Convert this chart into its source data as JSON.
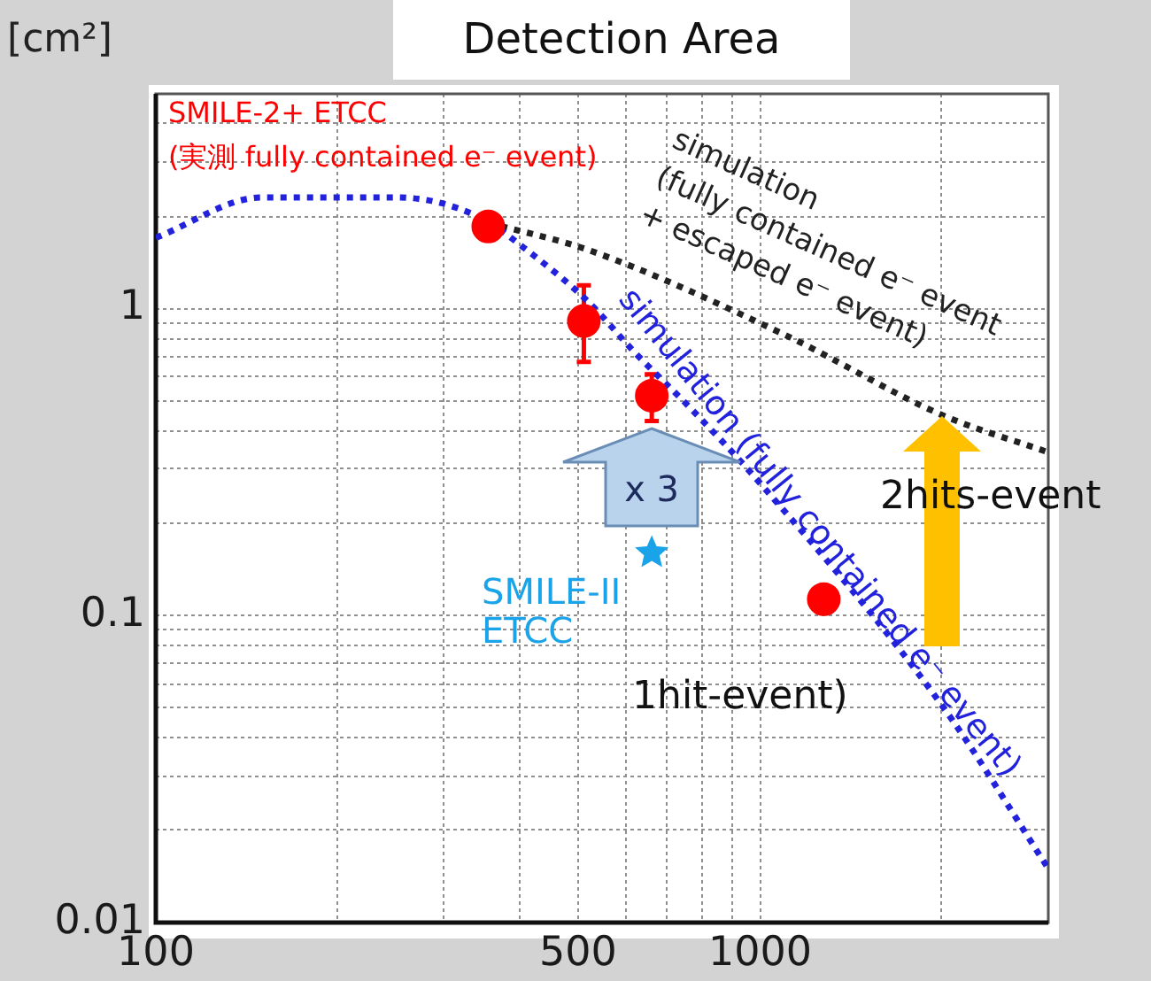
{
  "chart_data": {
    "type": "line",
    "title": "Detection Area",
    "ylabel": "[cm²]",
    "xlim": [
      100,
      3000
    ],
    "ylim": [
      0.01,
      5
    ],
    "log": "xy",
    "grid": true,
    "xticks": [
      100,
      {
        "value": 200,
        "label": null
      },
      {
        "value": 300,
        "label": null
      },
      {
        "value": 400,
        "label": null
      },
      500,
      {
        "value": 600,
        "label": null
      },
      {
        "value": 700,
        "label": null
      },
      {
        "value": 800,
        "label": null
      },
      {
        "value": 900,
        "label": null
      },
      1000,
      {
        "value": 2000,
        "label": null
      }
    ],
    "yticks": [
      0.01,
      {
        "value": 0.02,
        "label": null
      },
      {
        "value": 0.03,
        "label": null
      },
      {
        "value": 0.04,
        "label": null
      },
      {
        "value": 0.05,
        "label": null
      },
      {
        "value": 0.06,
        "label": null
      },
      {
        "value": 0.07,
        "label": null
      },
      {
        "value": 0.08,
        "label": null
      },
      {
        "value": 0.09,
        "label": null
      },
      0.1,
      {
        "value": 0.2,
        "label": null
      },
      {
        "value": 0.3,
        "label": null
      },
      {
        "value": 0.4,
        "label": null
      },
      {
        "value": 0.5,
        "label": null
      },
      {
        "value": 0.6,
        "label": null
      },
      {
        "value": 0.7,
        "label": null
      },
      {
        "value": 0.8,
        "label": null
      },
      {
        "value": 0.9,
        "label": null
      },
      1,
      {
        "value": 2,
        "label": null
      },
      {
        "value": 3,
        "label": null
      },
      {
        "value": 4,
        "label": null
      }
    ],
    "series": [
      {
        "name": "simulation (fully contained e⁻ event)",
        "color": "#2222dd",
        "marker": "none",
        "line_style": "dotted",
        "x": [
          100,
          150,
          250,
          340,
          420,
          520,
          620,
          770,
          1000,
          2000,
          3000
        ],
        "values": [
          1.7,
          2.3,
          2.3,
          2.0,
          1.5,
          1.05,
          0.72,
          0.47,
          0.27,
          0.051,
          0.015
        ]
      },
      {
        "name": "simulation\n(fully contained e⁻ event\n+ escaped e⁻ event)",
        "color": "#222222",
        "marker": "none",
        "line_style": "dotted",
        "x": [
          355,
          520,
          1100,
          2000,
          3000
        ],
        "values": [
          1.9,
          1.55,
          0.82,
          0.45,
          0.34
        ]
      },
      {
        "name": "SMILE-2+ ETCC\n(実測 fully contained e⁻ event)",
        "type": "scatter",
        "color": "#ff0000",
        "marker": "circle",
        "x": [
          355,
          511,
          662,
          1275
        ],
        "values": [
          1.85,
          0.91,
          0.52,
          0.113
        ],
        "errors": [
          null,
          [
            0.67,
            1.19
          ],
          [
            0.43,
            0.61
          ],
          null
        ]
      },
      {
        "name": "SMILE-II\nETCC",
        "type": "scatter",
        "color": "#1aa3e8",
        "marker": "star",
        "x": [
          662
        ],
        "values": [
          0.16
        ]
      }
    ],
    "annotations": [
      {
        "text": "x 3",
        "x": 662,
        "y": 0.41
      },
      "2hits-event",
      "1hit-event)"
    ]
  }
}
